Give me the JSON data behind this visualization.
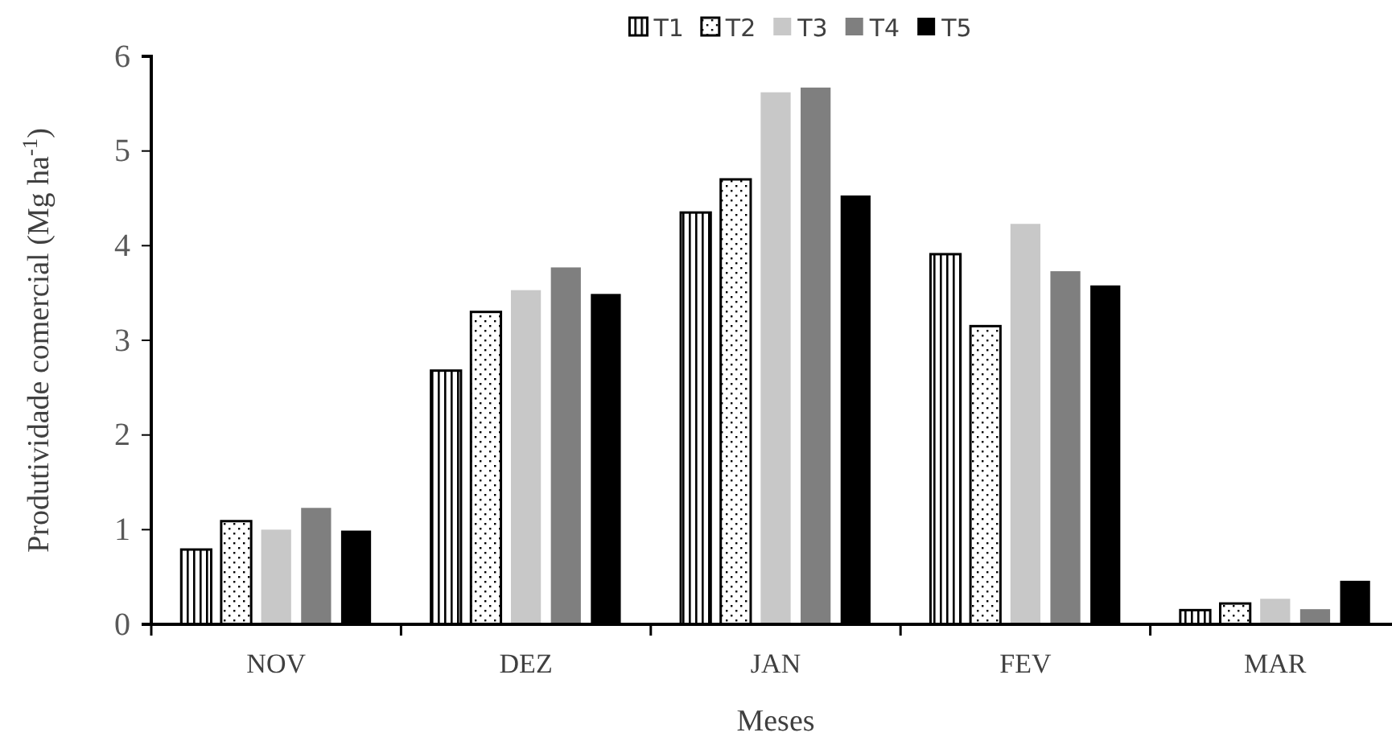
{
  "chart_data": {
    "type": "bar",
    "xlabel": "Meses",
    "ylabel": "Produtividade comercial (Mg ha$^{-1}$)",
    "categories": [
      "NOV",
      "DEZ",
      "JAN",
      "FEV",
      "MAR"
    ],
    "series": [
      {
        "name": "T1",
        "color": "#000000",
        "values": [
          0.79,
          2.68,
          4.35,
          3.91,
          0.15
        ]
      },
      {
        "name": "T2",
        "color": "#000000",
        "values": [
          1.09,
          3.3,
          4.7,
          3.15,
          0.22
        ]
      },
      {
        "name": "T3",
        "color": "#c8c8c8",
        "values": [
          1.0,
          3.53,
          5.62,
          4.23,
          0.27
        ]
      },
      {
        "name": "T4",
        "color": "#7f7f7f",
        "values": [
          1.23,
          3.77,
          5.67,
          3.73,
          0.16
        ]
      },
      {
        "name": "T5",
        "color": "#000000",
        "values": [
          0.99,
          3.49,
          4.53,
          3.58,
          0.46
        ]
      }
    ],
    "ylim": [
      0,
      6
    ],
    "yticks": [
      0,
      1,
      2,
      3,
      4,
      5,
      6
    ],
    "grid": false,
    "legend": "top"
  }
}
